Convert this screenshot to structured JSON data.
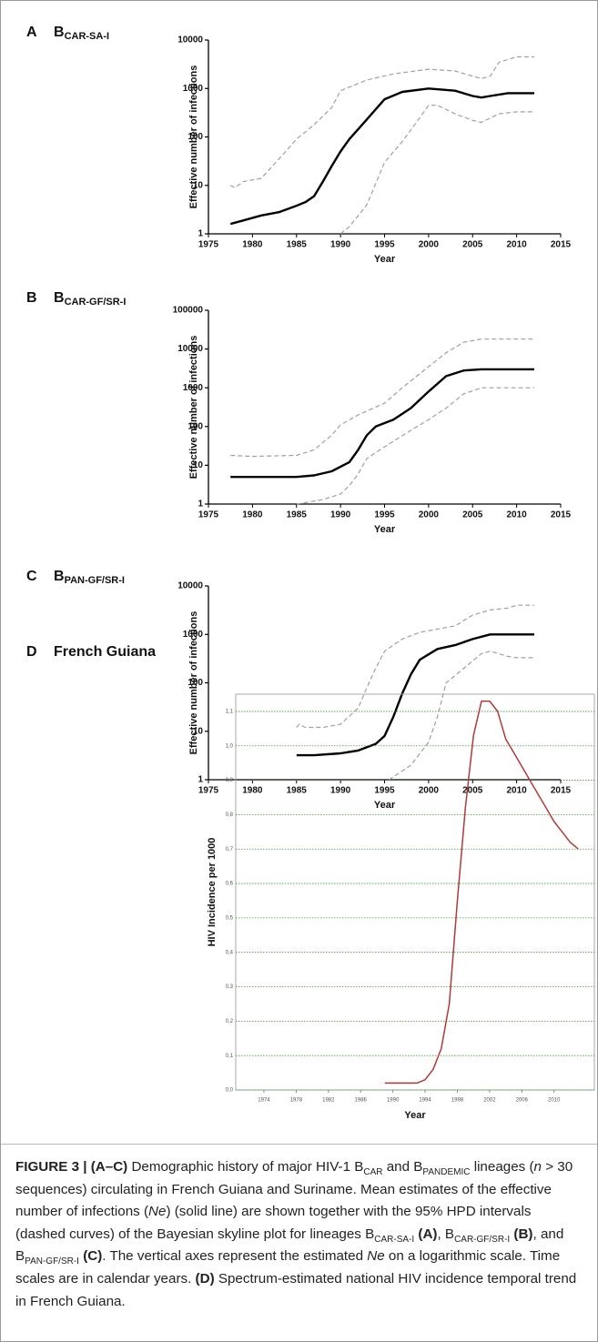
{
  "chart_data": [
    {
      "type": "line",
      "panel": "A",
      "title": {
        "main": "B",
        "sub": "CAR-SA-I"
      },
      "log": true,
      "ylabel": "Effective number of infections",
      "xlabel": "Year",
      "xlim": [
        1975,
        2015
      ],
      "xticks": [
        1975,
        1980,
        1985,
        1990,
        1995,
        2000,
        2005,
        2010,
        2015
      ],
      "ylim": [
        1,
        10000
      ],
      "yticks": [
        1,
        10,
        100,
        1000,
        10000
      ],
      "series": [
        {
          "color": "#000000",
          "dash": false,
          "x": [
            1977.5,
            1979,
            1981,
            1983,
            1985,
            1986,
            1987,
            1988,
            1989,
            1990,
            1991,
            1993,
            1995,
            1997,
            2000,
            2003,
            2005,
            2006,
            2007,
            2009,
            2012
          ],
          "values": [
            1.6,
            1.9,
            2.4,
            2.8,
            3.8,
            4.5,
            6,
            12,
            25,
            50,
            90,
            230,
            600,
            850,
            1000,
            900,
            700,
            650,
            700,
            800,
            800
          ]
        },
        {
          "color": "#a0a0a0",
          "dash": true,
          "x": [
            1977.5,
            1978,
            1979,
            1981,
            1983,
            1985,
            1987,
            1989,
            1990,
            1993,
            1996,
            2000,
            2003,
            2005,
            2006,
            2007,
            2008,
            2010,
            2012
          ],
          "values": [
            10,
            9,
            12,
            14,
            35,
            90,
            180,
            400,
            900,
            1500,
            2000,
            2500,
            2300,
            1800,
            1600,
            1800,
            3500,
            4500,
            4500
          ]
        },
        {
          "color": "#a0a0a0",
          "dash": true,
          "x": [
            1990,
            1991,
            1993,
            1995,
            1997,
            1999,
            2000,
            2001,
            2003,
            2005,
            2006,
            2008,
            2010,
            2012
          ],
          "values": [
            1,
            1.4,
            4,
            30,
            80,
            250,
            450,
            450,
            300,
            220,
            200,
            300,
            330,
            330
          ]
        }
      ]
    },
    {
      "type": "line",
      "panel": "B",
      "title": {
        "main": "B",
        "sub": "CAR-GF/SR-I"
      },
      "log": true,
      "ylabel": "Effective number of infections",
      "xlabel": "Year",
      "xlim": [
        1975,
        2015
      ],
      "xticks": [
        1975,
        1980,
        1985,
        1990,
        1995,
        2000,
        2005,
        2010,
        2015
      ],
      "ylim": [
        1,
        100000
      ],
      "yticks": [
        1,
        10,
        100,
        1000,
        10000,
        100000
      ],
      "series": [
        {
          "color": "#000000",
          "dash": false,
          "x": [
            1977.5,
            1985,
            1987,
            1989,
            1991,
            1992,
            1993,
            1994,
            1996,
            1998,
            2000,
            2002,
            2004,
            2006,
            2012
          ],
          "values": [
            5,
            5,
            5.5,
            7,
            12,
            25,
            60,
            100,
            150,
            300,
            800,
            2000,
            2800,
            3000,
            3000
          ]
        },
        {
          "color": "#a0a0a0",
          "dash": true,
          "x": [
            1977.5,
            1980,
            1985,
            1987,
            1989,
            1990,
            1992,
            1995,
            1997,
            2000,
            2002,
            2004,
            2006,
            2012
          ],
          "values": [
            18,
            17,
            18,
            25,
            60,
            110,
            200,
            400,
            1000,
            3500,
            8000,
            15000,
            18000,
            18000
          ]
        },
        {
          "color": "#a0a0a0",
          "dash": true,
          "x": [
            1985,
            1988,
            1990,
            1991,
            1992,
            1993,
            1995,
            1998,
            2000,
            2002,
            2004,
            2006,
            2012
          ],
          "values": [
            1,
            1.3,
            1.8,
            3,
            6,
            15,
            30,
            80,
            150,
            300,
            700,
            1000,
            1000
          ]
        }
      ]
    },
    {
      "type": "line",
      "panel": "C",
      "title": {
        "main": "B",
        "sub": "PAN-GF/SR-I"
      },
      "log": true,
      "ylabel": "Effective number of infections",
      "xlabel": "Year",
      "xlim": [
        1975,
        2015
      ],
      "xticks": [
        1975,
        1980,
        1985,
        1990,
        1995,
        2000,
        2005,
        2010,
        2015
      ],
      "ylim": [
        1,
        10000
      ],
      "yticks": [
        1,
        10,
        100,
        1000,
        10000
      ],
      "series": [
        {
          "color": "#000000",
          "dash": false,
          "x": [
            1985,
            1987,
            1990,
            1992,
            1994,
            1995,
            1996,
            1997,
            1998,
            1999,
            2001,
            2003,
            2005,
            2007,
            2012
          ],
          "values": [
            3.2,
            3.2,
            3.5,
            4,
            5.5,
            8,
            20,
            60,
            150,
            300,
            500,
            600,
            800,
            1000,
            1000
          ]
        },
        {
          "color": "#a0a0a0",
          "dash": true,
          "x": [
            1985,
            1985.3,
            1986,
            1988,
            1990,
            1992,
            1993,
            1994,
            1995,
            1997,
            1999,
            2003,
            2005,
            2007,
            2009,
            2010,
            2012
          ],
          "values": [
            12,
            14,
            12,
            12,
            14,
            30,
            80,
            200,
            450,
            800,
            1100,
            1500,
            2500,
            3200,
            3500,
            4000,
            4000
          ]
        },
        {
          "color": "#a0a0a0",
          "dash": true,
          "x": [
            1995.5,
            1998,
            2000,
            2001,
            2002,
            2004,
            2006,
            2007,
            2009,
            2010,
            2012
          ],
          "values": [
            1,
            2,
            6,
            20,
            100,
            200,
            400,
            450,
            350,
            330,
            330
          ]
        }
      ]
    },
    {
      "type": "line",
      "panel": "D",
      "title": {
        "main": "French Guiana"
      },
      "log": false,
      "grid": true,
      "ylabel": "HIV Incidence per 1000",
      "xlabel": "Year",
      "xlim": [
        1970.5,
        2015
      ],
      "xticks": [
        1974,
        1978,
        1982,
        1986,
        1990,
        1994,
        1998,
        2002,
        2006,
        2010
      ],
      "ylim": [
        0,
        1.15
      ],
      "yticks": [
        {
          "value": 0,
          "label": "0,0"
        },
        {
          "value": 0.1,
          "label": "0,1"
        },
        {
          "value": 0.2,
          "label": "0,2"
        },
        {
          "value": 0.3,
          "label": "0,3"
        },
        {
          "value": 0.4,
          "label": "0,4"
        },
        {
          "value": 0.5,
          "label": "0,5"
        },
        {
          "value": 0.6,
          "label": "0,6"
        },
        {
          "value": 0.7,
          "label": "0,7"
        },
        {
          "value": 0.8,
          "label": "0,8"
        },
        {
          "value": 0.9,
          "label": "0,9"
        },
        {
          "value": 1,
          "label": "1,0"
        },
        {
          "value": 1.1,
          "label": "1,1"
        }
      ],
      "series": [
        {
          "color": "#b03a3a",
          "dash": false,
          "x": [
            1989,
            1990,
            1991,
            1992,
            1993,
            1994,
            1995,
            1996,
            1997,
            1998,
            1999,
            2000,
            2001,
            2002,
            2003,
            2004,
            2005,
            2006,
            2007,
            2008,
            2009,
            2010,
            2011,
            2012,
            2013
          ],
          "values": [
            0.02,
            0.02,
            0.02,
            0.02,
            0.02,
            0.03,
            0.06,
            0.12,
            0.25,
            0.55,
            0.82,
            1.03,
            1.13,
            1.13,
            1.1,
            1.02,
            0.98,
            0.94,
            0.9,
            0.86,
            0.82,
            0.78,
            0.75,
            0.72,
            0.7
          ]
        }
      ]
    }
  ],
  "caption": [
    {
      "text": "FIGURE 3 | (A–C)",
      "b": true
    },
    {
      "text": " Demographic history of major HIV-1 B"
    },
    {
      "text": "CAR",
      "sub": true
    },
    {
      "text": " and B"
    },
    {
      "text": "PANDEMIC",
      "sub": true
    },
    {
      "text": " lineages ("
    },
    {
      "text": "n",
      "i": true
    },
    {
      "text": " > 30 sequences) circulating in French Guiana and Suriname. Mean estimates of the effective number of infections ("
    },
    {
      "text": "Ne",
      "i": true
    },
    {
      "text": ") (solid line) are shown together with the 95% HPD intervals (dashed curves) of the Bayesian skyline plot for lineages B"
    },
    {
      "text": "CAR-SA-I",
      "sub": true
    },
    {
      "text": " "
    },
    {
      "text": "(A)",
      "b": true
    },
    {
      "text": ", B"
    },
    {
      "text": "CAR-GF/SR-I",
      "sub": true
    },
    {
      "text": " "
    },
    {
      "text": "(B)",
      "b": true
    },
    {
      "text": ", and B"
    },
    {
      "text": "PAN-GF/SR-I",
      "sub": true
    },
    {
      "text": " "
    },
    {
      "text": "(C)",
      "b": true
    },
    {
      "text": ". The vertical axes represent the estimated "
    },
    {
      "text": "Ne",
      "i": true
    },
    {
      "text": " on a logarithmic scale. Time scales are in calendar years. "
    },
    {
      "text": "(D)",
      "b": true
    },
    {
      "text": " Spectrum-estimated national HIV incidence temporal trend in French Guiana."
    }
  ]
}
